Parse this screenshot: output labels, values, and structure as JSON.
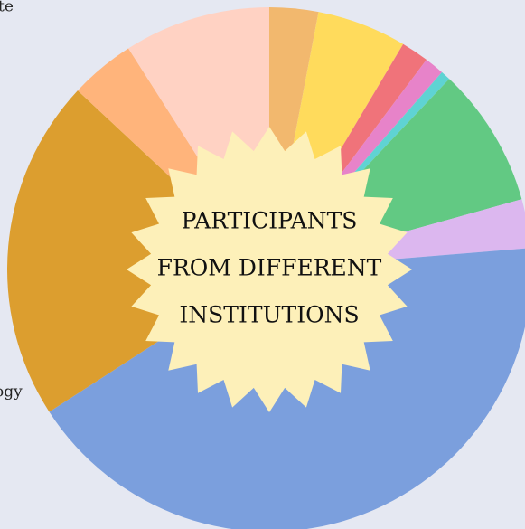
{
  "chart_data": {
    "type": "pie",
    "title": [
      "PARTICIPANTS",
      "FROM DIFFERENT",
      "INSTITUTIONS"
    ],
    "annotations": [
      "te",
      "ogy"
    ],
    "categories": [
      null,
      null,
      null,
      null,
      null,
      null,
      null,
      null,
      null,
      null,
      null
    ],
    "values": [
      3,
      5.5,
      1.7,
      1.2,
      0.6,
      8.6,
      3,
      42,
      21,
      4,
      9
    ],
    "colors": [
      "#f2b86e",
      "#ffdb5c",
      "#f0737a",
      "#e783c9",
      "#5fd3d3",
      "#62c983",
      "#dcb7ef",
      "#7b9fdd",
      "#dc9e2f",
      "#ffb47b",
      "#ffd2c3"
    ]
  }
}
